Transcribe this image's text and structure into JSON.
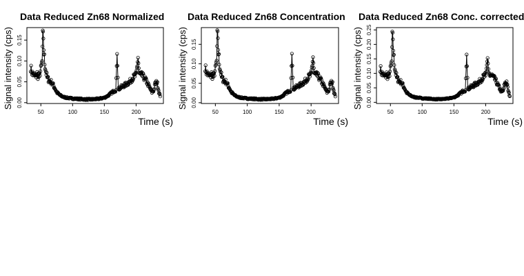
{
  "figure": {
    "line_color": "#000000",
    "point_color": "#000000",
    "background": "#ffffff"
  },
  "chart_data": [
    {
      "type": "scatter",
      "title": "Data Reduced Zn68 Normalized",
      "xlabel": "Time (s)",
      "ylabel": "Signal intensity (cps)",
      "xlim": [
        28,
        243
      ],
      "ylim": [
        -0.002,
        0.18
      ],
      "xticks": [
        50,
        100,
        150,
        200
      ],
      "yticks": [
        0.0,
        0.05,
        0.1,
        0.15
      ],
      "ytick_labels": [
        "0.00",
        "0.05",
        "0.10",
        "0.15"
      ],
      "grid": false,
      "marker": "open-circle",
      "series": [
        {
          "x": [
            34,
            36,
            38,
            40,
            42,
            44,
            46,
            48,
            50,
            52,
            53,
            54,
            55,
            56,
            58,
            60,
            62,
            64,
            66,
            68,
            70,
            72,
            75,
            80,
            85,
            90,
            95,
            100,
            110,
            120,
            130,
            140,
            150,
            155,
            160,
            165,
            168,
            170,
            172,
            175,
            180,
            185,
            190,
            195,
            200,
            203,
            205,
            210,
            215,
            220,
            225,
            228,
            230,
            233,
            236,
            238
          ],
          "y": [
            0.085,
            0.072,
            0.068,
            0.065,
            0.062,
            0.07,
            0.06,
            0.066,
            0.08,
            0.1,
            0.17,
            0.14,
            0.12,
            0.095,
            0.075,
            0.06,
            0.055,
            0.052,
            0.05,
            0.047,
            0.04,
            0.035,
            0.025,
            0.018,
            0.014,
            0.012,
            0.011,
            0.01,
            0.009,
            0.008,
            0.008,
            0.009,
            0.012,
            0.016,
            0.022,
            0.028,
            0.03,
            0.117,
            0.032,
            0.036,
            0.04,
            0.045,
            0.05,
            0.06,
            0.066,
            0.108,
            0.068,
            0.065,
            0.055,
            0.04,
            0.025,
            0.03,
            0.045,
            0.05,
            0.025,
            0.015
          ]
        }
      ]
    },
    {
      "type": "scatter",
      "title": "Data Reduced Zn68 Concentration",
      "xlabel": "Time (s)",
      "ylabel": "Signal intensity (cps)",
      "xlim": [
        28,
        243
      ],
      "ylim": [
        -0.002,
        0.193
      ],
      "xticks": [
        50,
        100,
        150,
        200
      ],
      "yticks": [
        0.0,
        0.05,
        0.1,
        0.15
      ],
      "ytick_labels": [
        "0.00",
        "0.05",
        "0.10",
        "0.15"
      ],
      "grid": false,
      "marker": "open-circle",
      "series": [
        {
          "x": [
            34,
            36,
            38,
            40,
            42,
            44,
            46,
            48,
            50,
            52,
            53,
            54,
            55,
            56,
            58,
            60,
            62,
            64,
            66,
            68,
            70,
            72,
            75,
            80,
            85,
            90,
            95,
            100,
            110,
            120,
            130,
            140,
            150,
            155,
            160,
            165,
            168,
            170,
            172,
            175,
            180,
            185,
            190,
            195,
            200,
            203,
            205,
            210,
            215,
            220,
            225,
            228,
            230,
            233,
            236,
            238
          ],
          "y": [
            0.092,
            0.078,
            0.073,
            0.07,
            0.067,
            0.075,
            0.065,
            0.071,
            0.086,
            0.108,
            0.183,
            0.151,
            0.129,
            0.102,
            0.081,
            0.065,
            0.059,
            0.056,
            0.054,
            0.051,
            0.043,
            0.038,
            0.027,
            0.019,
            0.015,
            0.013,
            0.012,
            0.011,
            0.01,
            0.009,
            0.009,
            0.01,
            0.013,
            0.017,
            0.024,
            0.03,
            0.032,
            0.126,
            0.034,
            0.039,
            0.043,
            0.048,
            0.054,
            0.065,
            0.071,
            0.117,
            0.073,
            0.07,
            0.059,
            0.043,
            0.027,
            0.032,
            0.048,
            0.054,
            0.027,
            0.016
          ]
        }
      ]
    },
    {
      "type": "scatter",
      "title": "Data Reduced Zn68 Conc. corrected",
      "xlabel": "Time (s)",
      "ylabel": "Signal intensity (cps)",
      "xlim": [
        28,
        243
      ],
      "ylim": [
        -0.004,
        0.258
      ],
      "xticks": [
        50,
        100,
        150,
        200
      ],
      "yticks": [
        0.0,
        0.05,
        0.1,
        0.15,
        0.2,
        0.25
      ],
      "ytick_labels": [
        "0.00",
        "0.05",
        "0.10",
        "0.15",
        "0.20",
        "0.25"
      ],
      "grid": false,
      "marker": "open-circle",
      "series": [
        {
          "x": [
            34,
            36,
            38,
            40,
            42,
            44,
            46,
            48,
            50,
            52,
            53,
            54,
            55,
            56,
            58,
            60,
            62,
            64,
            66,
            68,
            70,
            72,
            75,
            80,
            85,
            90,
            95,
            100,
            110,
            120,
            130,
            140,
            150,
            155,
            160,
            165,
            168,
            170,
            172,
            175,
            180,
            185,
            190,
            195,
            200,
            203,
            205,
            210,
            215,
            220,
            225,
            228,
            230,
            233,
            236,
            238
          ],
          "y": [
            0.12,
            0.102,
            0.096,
            0.092,
            0.088,
            0.099,
            0.085,
            0.093,
            0.113,
            0.142,
            0.24,
            0.198,
            0.17,
            0.134,
            0.106,
            0.085,
            0.078,
            0.074,
            0.071,
            0.067,
            0.057,
            0.05,
            0.035,
            0.025,
            0.02,
            0.017,
            0.016,
            0.014,
            0.013,
            0.011,
            0.011,
            0.013,
            0.017,
            0.023,
            0.031,
            0.04,
            0.042,
            0.165,
            0.045,
            0.051,
            0.057,
            0.064,
            0.071,
            0.085,
            0.093,
            0.153,
            0.096,
            0.092,
            0.078,
            0.057,
            0.035,
            0.042,
            0.064,
            0.071,
            0.035,
            0.021
          ]
        }
      ]
    }
  ]
}
